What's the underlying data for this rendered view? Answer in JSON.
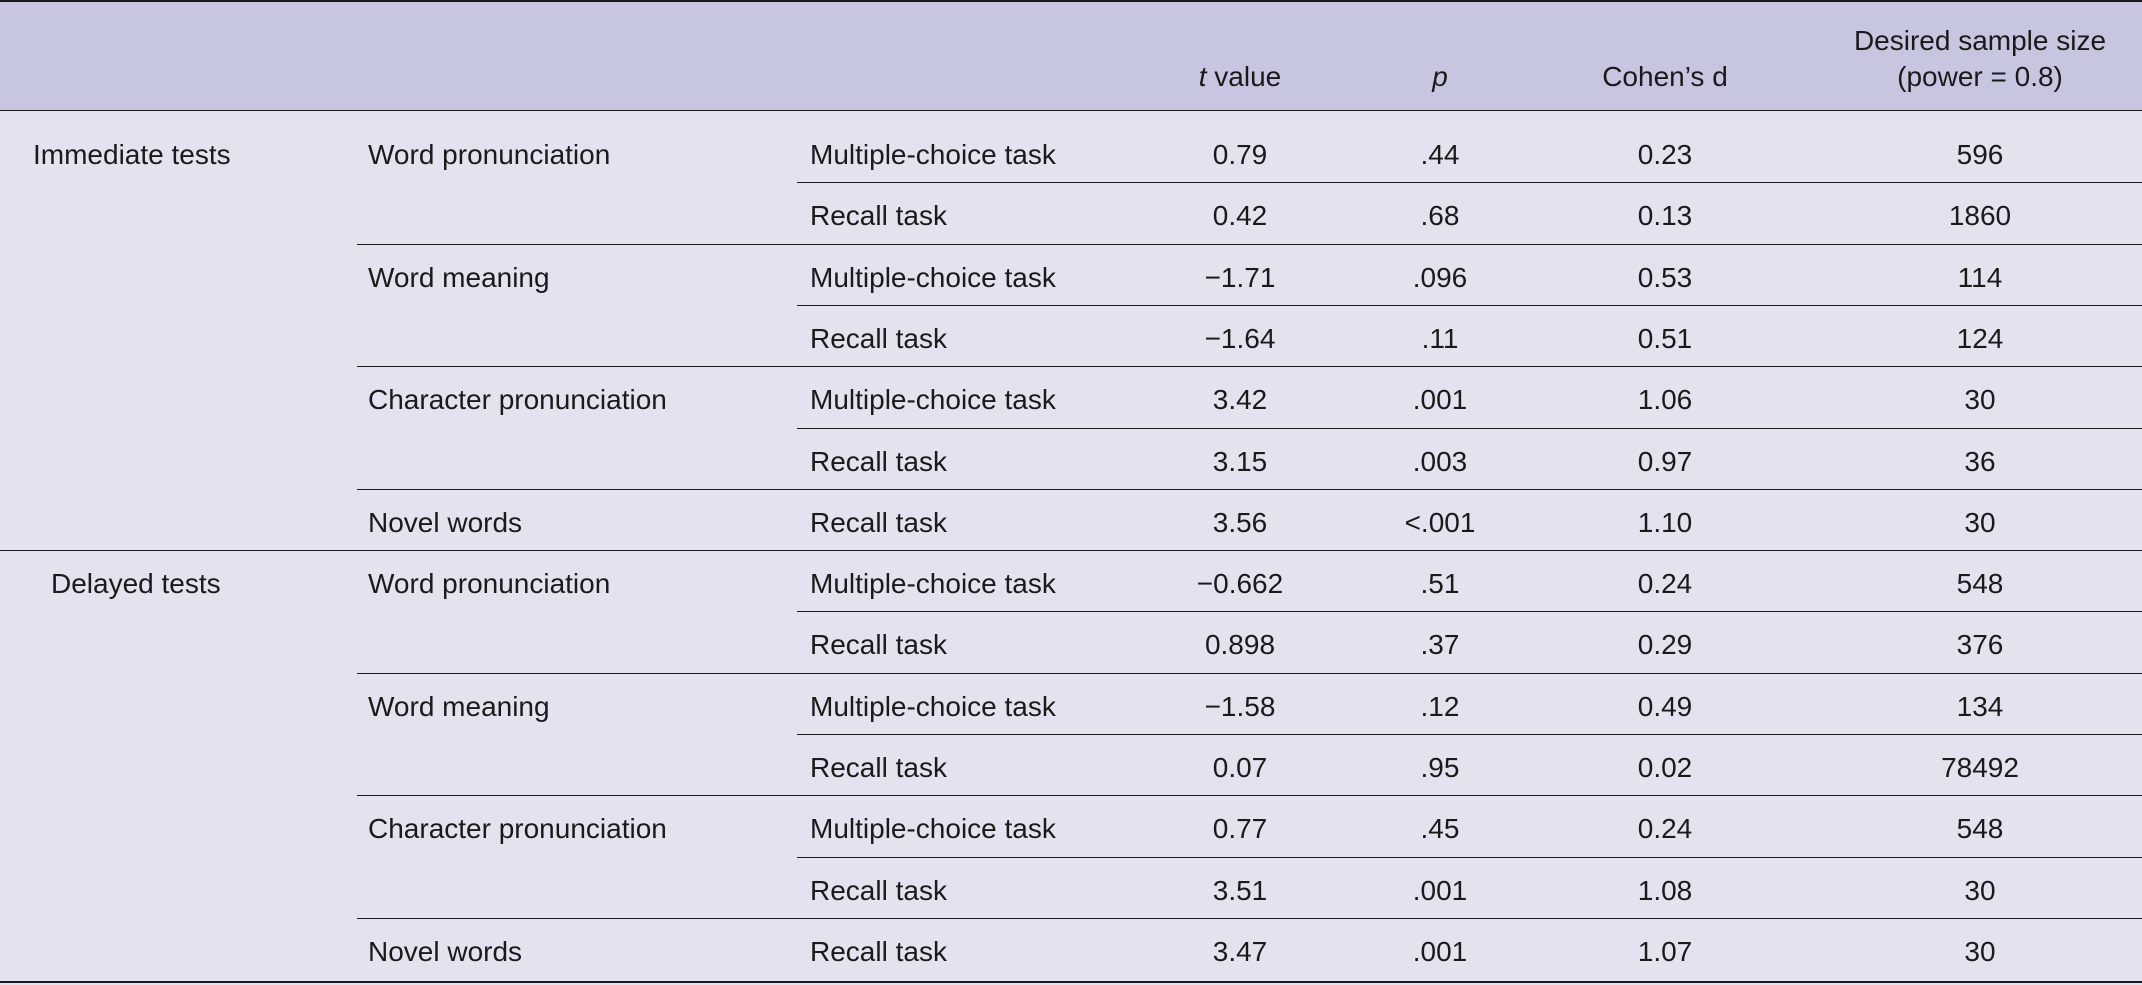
{
  "header": {
    "t_value_italic": "t",
    "t_value_rest": " value",
    "p": "p",
    "cohens_d": "Cohen’s d",
    "sample_line1": "Desired sample size",
    "sample_line2": "(power = 0.8)"
  },
  "rows": [
    {
      "group": "Immediate tests",
      "test": "Word pronunciation",
      "task": "Multiple-choice task",
      "t": "0.79",
      "p": ".44",
      "d": "0.23",
      "n": "596"
    },
    {
      "group": "",
      "test": "",
      "task": "Recall task",
      "t": "0.42",
      "p": ".68",
      "d": "0.13",
      "n": "1860"
    },
    {
      "group": "",
      "test": "Word meaning",
      "task": "Multiple-choice task",
      "t": "−1.71",
      "p": ".096",
      "d": "0.53",
      "n": "114"
    },
    {
      "group": "",
      "test": "",
      "task": "Recall task",
      "t": "−1.64",
      "p": ".11",
      "d": "0.51",
      "n": "124"
    },
    {
      "group": "",
      "test": "Character pronunciation",
      "task": "Multiple-choice task",
      "t": "3.42",
      "p": ".001",
      "d": "1.06",
      "n": "30"
    },
    {
      "group": "",
      "test": "",
      "task": "Recall task",
      "t": "3.15",
      "p": ".003",
      "d": "0.97",
      "n": "36"
    },
    {
      "group": "",
      "test": "Novel words",
      "task": "Recall task",
      "t": "3.56",
      "p": "<.001",
      "d": "1.10",
      "n": "30"
    },
    {
      "group": "Delayed tests",
      "test": "Word pronunciation",
      "task": "Multiple-choice task",
      "t": "−0.662",
      "p": ".51",
      "d": "0.24",
      "n": "548"
    },
    {
      "group": "",
      "test": "",
      "task": "Recall task",
      "t": "0.898",
      "p": ".37",
      "d": "0.29",
      "n": "376"
    },
    {
      "group": "",
      "test": "Word meaning",
      "task": "Multiple-choice task",
      "t": "−1.58",
      "p": ".12",
      "d": "0.49",
      "n": "134"
    },
    {
      "group": "",
      "test": "",
      "task": "Recall task",
      "t": "0.07",
      "p": ".95",
      "d": "0.02",
      "n": "78492"
    },
    {
      "group": "",
      "test": "Character pronunciation",
      "task": "Multiple-choice task",
      "t": "0.77",
      "p": ".45",
      "d": "0.24",
      "n": "548"
    },
    {
      "group": "",
      "test": "",
      "task": "Recall task",
      "t": "3.51",
      "p": ".001",
      "d": "1.08",
      "n": "30"
    },
    {
      "group": "",
      "test": "Novel words",
      "task": "Recall task",
      "t": "3.47",
      "p": ".001",
      "d": "1.07",
      "n": "30"
    }
  ],
  "colors": {
    "header_bg": "#c6c6e1",
    "body_bg": "#e3e3f0",
    "rule": "#1a1a1a"
  }
}
